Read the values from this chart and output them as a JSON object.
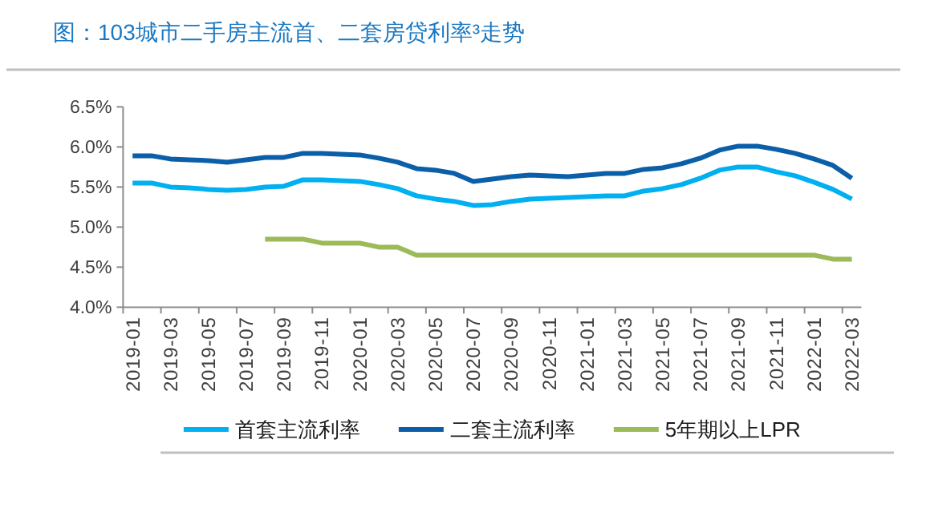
{
  "chart_data": {
    "type": "line",
    "title": "图：103城市二手房主流首、二套房贷利率³走势",
    "categories": [
      "2019-01",
      null,
      "2019-03",
      null,
      "2019-05",
      null,
      "2019-07",
      null,
      "2019-09",
      null,
      "2019-11",
      null,
      "2020-01",
      null,
      "2020-03",
      null,
      "2020-05",
      null,
      "2020-07",
      null,
      "2020-09",
      null,
      "2020-11",
      null,
      "2021-01",
      null,
      "2021-03",
      null,
      "2021-05",
      null,
      "2021-07",
      null,
      "2021-09",
      null,
      "2021-11",
      null,
      "2022-01",
      null,
      "2022-03"
    ],
    "series": [
      {
        "name": "首套主流利率",
        "color": "#00b0f0",
        "values": [
          5.55,
          5.55,
          5.5,
          5.49,
          5.47,
          5.46,
          5.47,
          5.5,
          5.51,
          5.59,
          5.59,
          5.58,
          5.57,
          5.53,
          5.48,
          5.39,
          5.35,
          5.32,
          5.27,
          5.28,
          5.32,
          5.35,
          5.36,
          5.37,
          5.38,
          5.39,
          5.39,
          5.45,
          5.48,
          5.53,
          5.61,
          5.71,
          5.75,
          5.75,
          5.69,
          5.64,
          5.56,
          5.47,
          5.35
        ]
      },
      {
        "name": "二套主流利率",
        "color": "#0b5fa8",
        "values": [
          5.89,
          5.89,
          5.85,
          5.84,
          5.83,
          5.81,
          5.84,
          5.87,
          5.87,
          5.92,
          5.92,
          5.91,
          5.9,
          5.86,
          5.81,
          5.73,
          5.71,
          5.67,
          5.57,
          5.6,
          5.63,
          5.65,
          5.64,
          5.63,
          5.65,
          5.67,
          5.67,
          5.72,
          5.74,
          5.79,
          5.86,
          5.96,
          6.01,
          6.01,
          5.97,
          5.92,
          5.85,
          5.77,
          5.61
        ]
      },
      {
        "name": "5年期以上LPR",
        "color": "#9bbb59",
        "values": [
          null,
          null,
          null,
          null,
          null,
          null,
          null,
          4.85,
          4.85,
          4.85,
          4.8,
          4.8,
          4.8,
          4.75,
          4.75,
          4.65,
          4.65,
          4.65,
          4.65,
          4.65,
          4.65,
          4.65,
          4.65,
          4.65,
          4.65,
          4.65,
          4.65,
          4.65,
          4.65,
          4.65,
          4.65,
          4.65,
          4.65,
          4.65,
          4.65,
          4.65,
          4.65,
          4.6,
          4.6
        ]
      }
    ],
    "ylim": [
      4.0,
      6.5
    ],
    "yticks": [
      {
        "value": 4.0,
        "label": "4.0%"
      },
      {
        "value": 4.5,
        "label": "4.5%"
      },
      {
        "value": 5.0,
        "label": "5.0%"
      },
      {
        "value": 5.5,
        "label": "5.5%"
      },
      {
        "value": 6.0,
        "label": "6.0%"
      },
      {
        "value": 6.5,
        "label": "6.5%"
      }
    ],
    "grid": false,
    "legend": "bottom"
  }
}
